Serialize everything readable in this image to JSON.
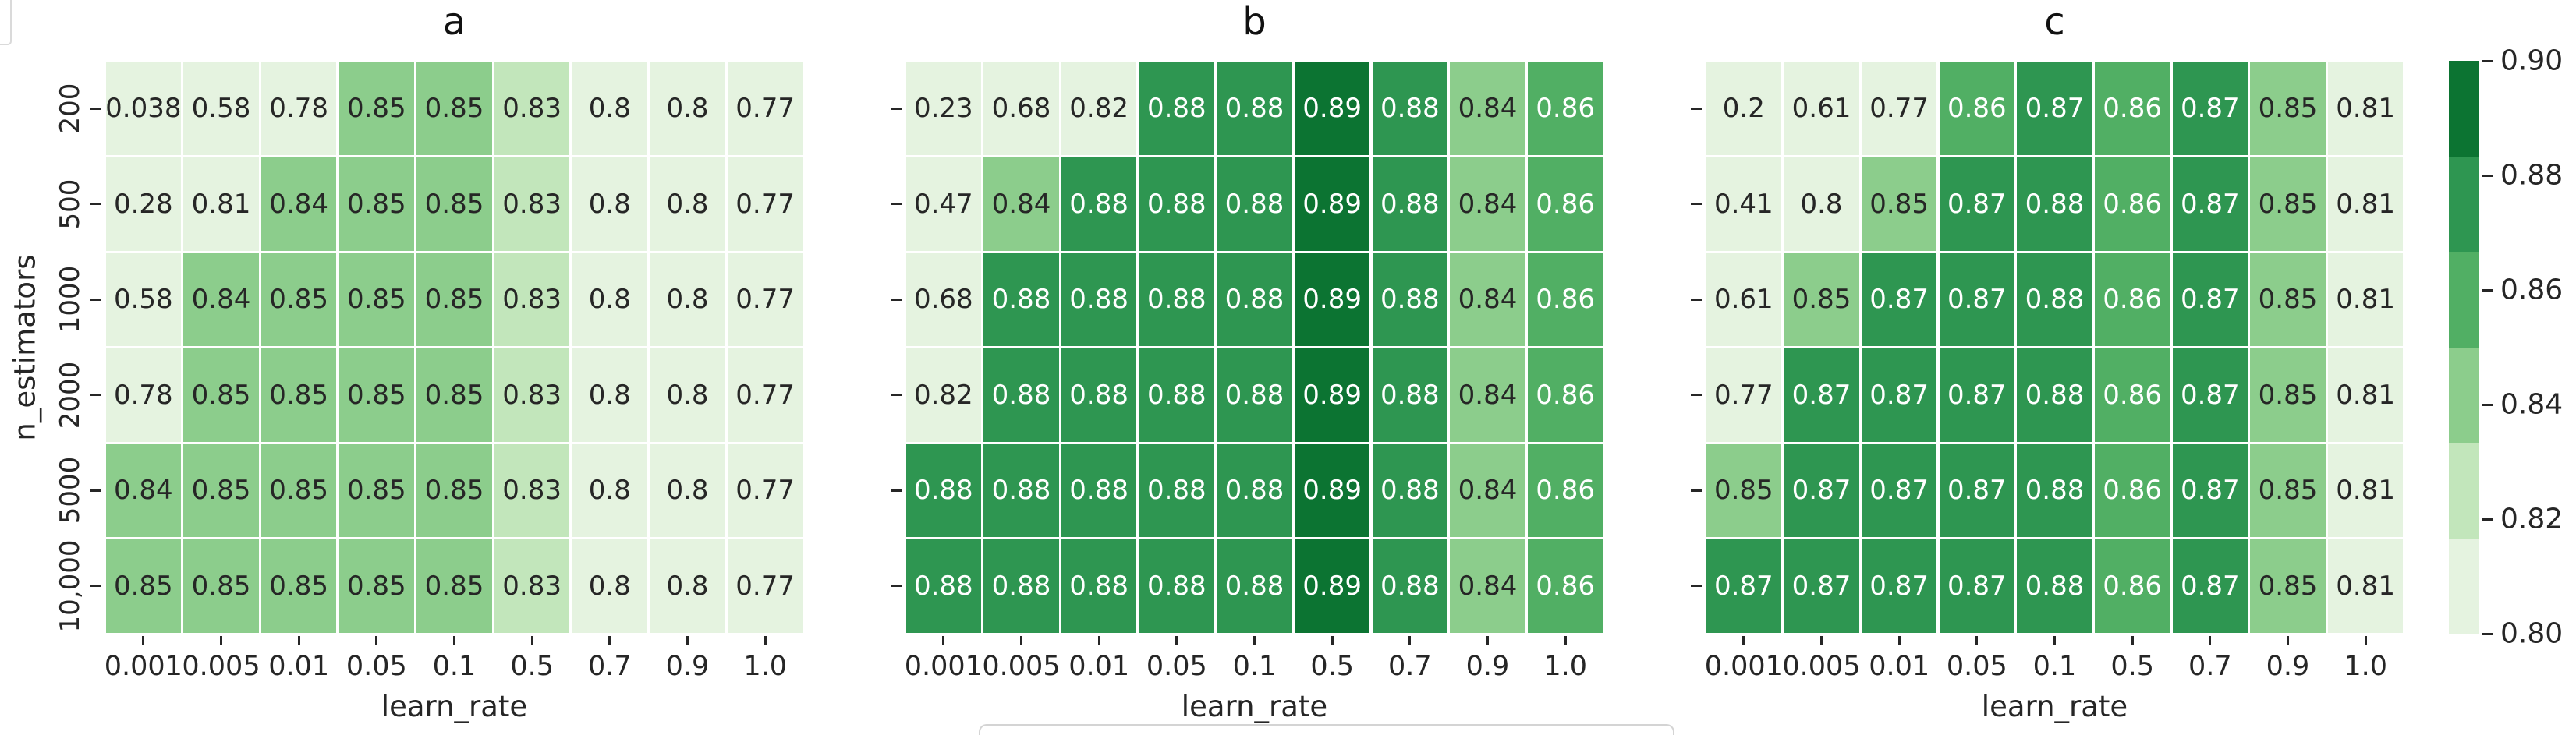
{
  "chart_data": {
    "type": "heatmap",
    "layout": "three-panels-shared-colorbar",
    "x_categories": [
      "0.001",
      "0.005",
      "0.01",
      "0.05",
      "0.1",
      "0.5",
      "0.7",
      "0.9",
      "1.0"
    ],
    "y_categories": [
      "200",
      "500",
      "1000",
      "2000",
      "5000",
      "10,000"
    ],
    "xlabel": "learn_rate",
    "ylabel": "n_estimators",
    "grid": "white-gridlines",
    "panels": [
      {
        "title": "a",
        "values": [
          [
            "0.038",
            "0.58",
            "0.78",
            "0.85",
            "0.85",
            "0.83",
            "0.8",
            "0.8",
            "0.77"
          ],
          [
            "0.28",
            "0.81",
            "0.84",
            "0.85",
            "0.85",
            "0.83",
            "0.8",
            "0.8",
            "0.77"
          ],
          [
            "0.58",
            "0.84",
            "0.85",
            "0.85",
            "0.85",
            "0.83",
            "0.8",
            "0.8",
            "0.77"
          ],
          [
            "0.78",
            "0.85",
            "0.85",
            "0.85",
            "0.85",
            "0.83",
            "0.8",
            "0.8",
            "0.77"
          ],
          [
            "0.84",
            "0.85",
            "0.85",
            "0.85",
            "0.85",
            "0.83",
            "0.8",
            "0.8",
            "0.77"
          ],
          [
            "0.85",
            "0.85",
            "0.85",
            "0.85",
            "0.85",
            "0.83",
            "0.8",
            "0.8",
            "0.77"
          ]
        ]
      },
      {
        "title": "b",
        "values": [
          [
            "0.23",
            "0.68",
            "0.82",
            "0.88",
            "0.88",
            "0.89",
            "0.88",
            "0.84",
            "0.86"
          ],
          [
            "0.47",
            "0.84",
            "0.88",
            "0.88",
            "0.88",
            "0.89",
            "0.88",
            "0.84",
            "0.86"
          ],
          [
            "0.68",
            "0.88",
            "0.88",
            "0.88",
            "0.88",
            "0.89",
            "0.88",
            "0.84",
            "0.86"
          ],
          [
            "0.82",
            "0.88",
            "0.88",
            "0.88",
            "0.88",
            "0.89",
            "0.88",
            "0.84",
            "0.86"
          ],
          [
            "0.88",
            "0.88",
            "0.88",
            "0.88",
            "0.88",
            "0.89",
            "0.88",
            "0.84",
            "0.86"
          ],
          [
            "0.88",
            "0.88",
            "0.88",
            "0.88",
            "0.88",
            "0.89",
            "0.88",
            "0.84",
            "0.86"
          ]
        ]
      },
      {
        "title": "c",
        "values": [
          [
            "0.2",
            "0.61",
            "0.77",
            "0.86",
            "0.87",
            "0.86",
            "0.87",
            "0.85",
            "0.81"
          ],
          [
            "0.41",
            "0.8",
            "0.85",
            "0.87",
            "0.88",
            "0.86",
            "0.87",
            "0.85",
            "0.81"
          ],
          [
            "0.61",
            "0.85",
            "0.87",
            "0.87",
            "0.88",
            "0.86",
            "0.87",
            "0.85",
            "0.81"
          ],
          [
            "0.77",
            "0.87",
            "0.87",
            "0.87",
            "0.88",
            "0.86",
            "0.87",
            "0.85",
            "0.81"
          ],
          [
            "0.85",
            "0.87",
            "0.87",
            "0.87",
            "0.88",
            "0.86",
            "0.87",
            "0.85",
            "0.81"
          ],
          [
            "0.87",
            "0.87",
            "0.87",
            "0.87",
            "0.88",
            "0.86",
            "0.87",
            "0.85",
            "0.81"
          ]
        ]
      }
    ],
    "colorbar": {
      "ticks": [
        "0.90",
        "0.88",
        "0.86",
        "0.84",
        "0.82",
        "0.80"
      ],
      "vmin": 0.8,
      "vmax": 0.9,
      "segments_top_to_bottom": [
        "#0c7432",
        "#2e9651",
        "#51af64",
        "#8ccd8c",
        "#c2e6bb",
        "#e5f3e0"
      ]
    },
    "palette": {
      "bins_light_to_dark": [
        "#e5f3e0",
        "#c2e6bb",
        "#8ccd8c",
        "#51af64",
        "#2e9651",
        "#0c7432"
      ],
      "value_to_bin": {
        "0.82": 0,
        "0.83": 1,
        "0.84": 2,
        "0.85": 2,
        "0.86": 3,
        "0.87": 4,
        "0.88": 4,
        "0.89": 5
      },
      "default_bin": 0,
      "white_text_min_bin": 3,
      "dark_text_color": "#262626",
      "light_text_color": "#ffffff",
      "gridline_color": "#ffffff"
    }
  },
  "artifacts": {
    "top_left_box_border": "#dadada",
    "bottom_center_box_border": "#d4d4d4"
  }
}
